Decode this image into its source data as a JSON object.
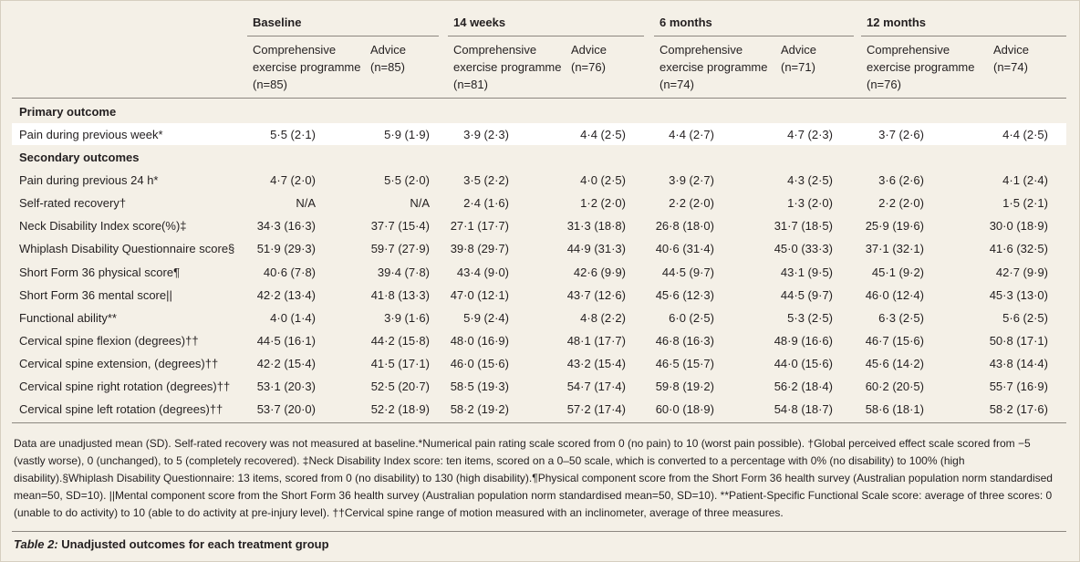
{
  "columns": {
    "groups": [
      {
        "label": "Baseline",
        "subcolumns": [
          "Comprehensive exercise programme (n=85)",
          "Advice (n=85)"
        ]
      },
      {
        "label": "14 weeks",
        "subcolumns": [
          "Comprehensive exercise programme (n=81)",
          "Advice (n=76)"
        ]
      },
      {
        "label": "6 months",
        "subcolumns": [
          "Comprehensive exercise programme (n=74)",
          "Advice (n=71)"
        ]
      },
      {
        "label": "12 months",
        "subcolumns": [
          "Comprehensive exercise programme (n=76)",
          "Advice (n=74)"
        ]
      }
    ]
  },
  "sections": [
    {
      "title": "Primary outcome",
      "rows": [
        {
          "label": "Pain during previous week*",
          "values": [
            "5·5 (2·1)",
            "5·9 (1·9)",
            "3·9 (2·3)",
            "4·4 (2·5)",
            "4·4 (2·7)",
            "4·7 (2·3)",
            "3·7 (2·6)",
            "4·4 (2·5)"
          ]
        }
      ]
    },
    {
      "title": "Secondary outcomes",
      "rows": [
        {
          "label": "Pain during previous 24 h*",
          "values": [
            "4·7 (2·0)",
            "5·5 (2·0)",
            "3·5 (2·2)",
            "4·0 (2·5)",
            "3·9 (2·7)",
            "4·3 (2·5)",
            "3·6 (2·6)",
            "4·1 (2·4)"
          ]
        },
        {
          "label": "Self-rated recovery†",
          "values": [
            "N/A",
            "N/A",
            "2·4 (1·6)",
            "1·2 (2·0)",
            "2·2 (2·0)",
            "1·3 (2·0)",
            "2·2 (2·0)",
            "1·5 (2·1)"
          ]
        },
        {
          "label": "Neck Disability Index score(%)‡",
          "values": [
            "34·3 (16·3)",
            "37·7 (15·4)",
            "27·1 (17·7)",
            "31·3 (18·8)",
            "26·8 (18·0)",
            "31·7 (18·5)",
            "25·9 (19·6)",
            "30·0 (18·9)"
          ]
        },
        {
          "label": "Whiplash Disability Questionnaire score§",
          "values": [
            "51·9 (29·3)",
            "59·7 (27·9)",
            "39·8 (29·7)",
            "44·9 (31·3)",
            "40·6 (31·4)",
            "45·0 (33·3)",
            "37·1 (32·1)",
            "41·6 (32·5)"
          ]
        },
        {
          "label": "Short Form 36 physical score¶",
          "values": [
            "40·6 (7·8)",
            "39·4 (7·8)",
            "43·4 (9·0)",
            "42·6 (9·9)",
            "44·5 (9·7)",
            "43·1 (9·5)",
            "45·1 (9·2)",
            "42·7 (9·9)"
          ]
        },
        {
          "label": "Short Form 36 mental score||",
          "values": [
            "42·2 (13·4)",
            "41·8 (13·3)",
            "47·0 (12·1)",
            "43·7 (12·6)",
            "45·6 (12·3)",
            "44·5 (9·7)",
            "46·0 (12·4)",
            "45·3 (13·0)"
          ]
        },
        {
          "label": "Functional ability**",
          "values": [
            "4·0 (1·4)",
            "3·9 (1·6)",
            "5·9 (2·4)",
            "4·8 (2·2)",
            "6·0 (2·5)",
            "5·3 (2·5)",
            "6·3 (2·5)",
            "5·6 (2·5)"
          ]
        },
        {
          "label": "Cervical spine flexion (degrees)††",
          "values": [
            "44·5 (16·1)",
            "44·2 (15·8)",
            "48·0 (16·9)",
            "48·1 (17·7)",
            "46·8 (16·3)",
            "48·9 (16·6)",
            "46·7 (15·6)",
            "50·8 (17·1)"
          ]
        },
        {
          "label": "Cervical spine extension, (degrees)††",
          "values": [
            "42·2 (15·4)",
            "41·5 (17·1)",
            "46·0 (15·6)",
            "43·2 (15·4)",
            "46·5 (15·7)",
            "44·0 (15·6)",
            "45·6 (14·2)",
            "43·8 (14·4)"
          ]
        },
        {
          "label": "Cervical spine right rotation (degrees)††",
          "values": [
            "53·1 (20·3)",
            "52·5 (20·7)",
            "58·5 (19·3)",
            "54·7 (17·4)",
            "59·8 (19·2)",
            "56·2 (18·4)",
            "60·2 (20·5)",
            "55·7 (16·9)"
          ]
        },
        {
          "label": "Cervical spine left rotation (degrees)††",
          "values": [
            "53·7 (20·0)",
            "52·2 (18·9)",
            "58·2 (19·2)",
            "57·2 (17·4)",
            "60·0 (18·9)",
            "54·8 (18·7)",
            "58·6 (18·1)",
            "58·2 (17·6)"
          ]
        }
      ]
    }
  ],
  "footnote": "Data are unadjusted mean (SD). Self-rated recovery was not measured at baseline.*Numerical pain rating scale scored from 0 (no pain) to 10 (worst pain possible). †Global perceived effect scale scored from −5 (vastly worse), 0 (unchanged), to 5 (completely recovered). ‡Neck Disability Index score: ten items, scored on a 0–50 scale, which is converted to a percentage with 0% (no disability) to 100% (high disability).§Whiplash Disability Questionnaire: 13 items, scored from 0 (no disability) to 130 (high disability).¶Physical component score from the Short Form 36 health survey (Australian population norm standardised mean=50, SD=10). ||Mental component score from the Short Form 36 health survey (Australian population norm standardised mean=50, SD=10). **Patient-Specific Functional Scale score: average of three scores: 0 (unable to do activity) to 10 (able to do activity at pre-injury level). ††Cervical spine range of motion measured with an inclinometer, average of three measures.",
  "caption": {
    "label": "Table 2:",
    "text": "Unadjusted outcomes for each treatment group"
  }
}
